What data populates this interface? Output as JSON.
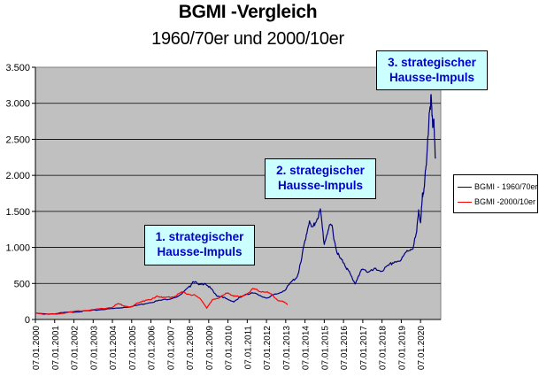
{
  "title": "BGMI -Vergleich",
  "subtitle": "1960/70er und 2000/10er",
  "colors": {
    "series1": "#000080",
    "series2": "#ff0000",
    "plot_bg": "#c0c0c0",
    "annot_bg": "#ccffff",
    "annot_text": "#0000cc"
  },
  "annotations": [
    {
      "lines": [
        "1. strategischer",
        "Hausse-Impuls"
      ]
    },
    {
      "lines": [
        "2. strategischer",
        "Hausse-Impuls"
      ]
    },
    {
      "lines": [
        "3. strategischer",
        "Hausse-Impuls"
      ]
    }
  ],
  "legend": [
    "BGMI - 1960/70er",
    "BGMI -2000/10er"
  ],
  "chart_data": {
    "type": "line",
    "title": "BGMI -Vergleich",
    "subtitle": "1960/70er und 2000/10er",
    "ylim": [
      0,
      3500
    ],
    "y_ticks": [
      0,
      500,
      1000,
      1500,
      2000,
      2500,
      3000,
      3500
    ],
    "y_tick_labels": [
      "0",
      "500",
      "1.000",
      "1.500",
      "2.000",
      "2.500",
      "3.000",
      "3.500"
    ],
    "x_tick_labels": [
      "07.01.2000",
      "07.01.2001",
      "07.01.2002",
      "07.01.2003",
      "07.01.2004",
      "07.01.2005",
      "07.01.2006",
      "07.01.2007",
      "07.01.2008",
      "07.01.2009",
      "07.01.2010",
      "07.01.2011",
      "07.01.2012",
      "07.01.2013",
      "07.01.2014",
      "07.01.2015",
      "07.01.2016",
      "07.01.2017",
      "07.01.2018",
      "07.01.2019",
      "07.01.2020"
    ],
    "grid": "horizontal",
    "legend_position": "right",
    "series": [
      {
        "name": "BGMI - 1960/70er",
        "color": "#000080",
        "points": [
          [
            2000.0,
            85
          ],
          [
            2000.5,
            75
          ],
          [
            2001.0,
            80
          ],
          [
            2001.5,
            95
          ],
          [
            2002.0,
            105
          ],
          [
            2002.5,
            115
          ],
          [
            2003.0,
            125
          ],
          [
            2003.5,
            140
          ],
          [
            2004.0,
            150
          ],
          [
            2004.5,
            165
          ],
          [
            2005.0,
            180
          ],
          [
            2005.5,
            210
          ],
          [
            2006.0,
            240
          ],
          [
            2006.5,
            265
          ],
          [
            2007.0,
            290
          ],
          [
            2007.5,
            330
          ],
          [
            2008.0,
            450
          ],
          [
            2008.2,
            540
          ],
          [
            2008.5,
            470
          ],
          [
            2008.8,
            510
          ],
          [
            2009.1,
            430
          ],
          [
            2009.4,
            330
          ],
          [
            2009.7,
            320
          ],
          [
            2010.0,
            270
          ],
          [
            2010.3,
            250
          ],
          [
            2010.6,
            300
          ],
          [
            2011.0,
            350
          ],
          [
            2011.3,
            380
          ],
          [
            2011.6,
            330
          ],
          [
            2012.0,
            300
          ],
          [
            2012.3,
            330
          ],
          [
            2012.6,
            360
          ],
          [
            2013.0,
            420
          ],
          [
            2013.3,
            520
          ],
          [
            2013.6,
            600
          ],
          [
            2013.8,
            800
          ],
          [
            2014.0,
            1100
          ],
          [
            2014.2,
            1350
          ],
          [
            2014.4,
            1250
          ],
          [
            2014.6,
            1400
          ],
          [
            2014.8,
            1500
          ],
          [
            2015.0,
            1050
          ],
          [
            2015.2,
            1250
          ],
          [
            2015.4,
            1300
          ],
          [
            2015.6,
            1000
          ],
          [
            2015.8,
            850
          ],
          [
            2016.0,
            800
          ],
          [
            2016.2,
            700
          ],
          [
            2016.4,
            600
          ],
          [
            2016.6,
            500
          ],
          [
            2016.8,
            600
          ],
          [
            2017.0,
            720
          ],
          [
            2017.3,
            650
          ],
          [
            2017.6,
            690
          ],
          [
            2018.0,
            680
          ],
          [
            2018.3,
            730
          ],
          [
            2018.6,
            800
          ],
          [
            2019.0,
            820
          ],
          [
            2019.3,
            950
          ],
          [
            2019.6,
            1000
          ],
          [
            2019.8,
            1200
          ],
          [
            2019.9,
            1550
          ],
          [
            2020.0,
            1300
          ],
          [
            2020.1,
            1700
          ],
          [
            2020.2,
            1900
          ],
          [
            2020.3,
            2100
          ],
          [
            2020.45,
            2900
          ],
          [
            2020.55,
            3060
          ],
          [
            2020.62,
            2700
          ],
          [
            2020.68,
            2800
          ],
          [
            2020.72,
            2500
          ],
          [
            2020.78,
            2250
          ]
        ]
      },
      {
        "name": "BGMI -2000/10er",
        "color": "#ff0000",
        "points": [
          [
            2000.0,
            95
          ],
          [
            2000.5,
            70
          ],
          [
            2001.0,
            75
          ],
          [
            2001.5,
            90
          ],
          [
            2002.0,
            110
          ],
          [
            2002.5,
            125
          ],
          [
            2003.0,
            135
          ],
          [
            2003.5,
            150
          ],
          [
            2004.0,
            170
          ],
          [
            2004.3,
            220
          ],
          [
            2004.6,
            190
          ],
          [
            2005.0,
            170
          ],
          [
            2005.3,
            230
          ],
          [
            2005.6,
            260
          ],
          [
            2006.0,
            270
          ],
          [
            2006.3,
            330
          ],
          [
            2006.6,
            300
          ],
          [
            2007.0,
            310
          ],
          [
            2007.3,
            330
          ],
          [
            2007.6,
            380
          ],
          [
            2008.0,
            350
          ],
          [
            2008.3,
            330
          ],
          [
            2008.6,
            280
          ],
          [
            2008.9,
            160
          ],
          [
            2009.2,
            270
          ],
          [
            2009.5,
            300
          ],
          [
            2009.8,
            340
          ],
          [
            2010.0,
            370
          ],
          [
            2010.3,
            330
          ],
          [
            2010.6,
            310
          ],
          [
            2011.0,
            360
          ],
          [
            2011.3,
            430
          ],
          [
            2011.6,
            400
          ],
          [
            2012.0,
            380
          ],
          [
            2012.3,
            340
          ],
          [
            2012.6,
            270
          ],
          [
            2012.9,
            240
          ],
          [
            2013.1,
            210
          ]
        ]
      }
    ]
  }
}
